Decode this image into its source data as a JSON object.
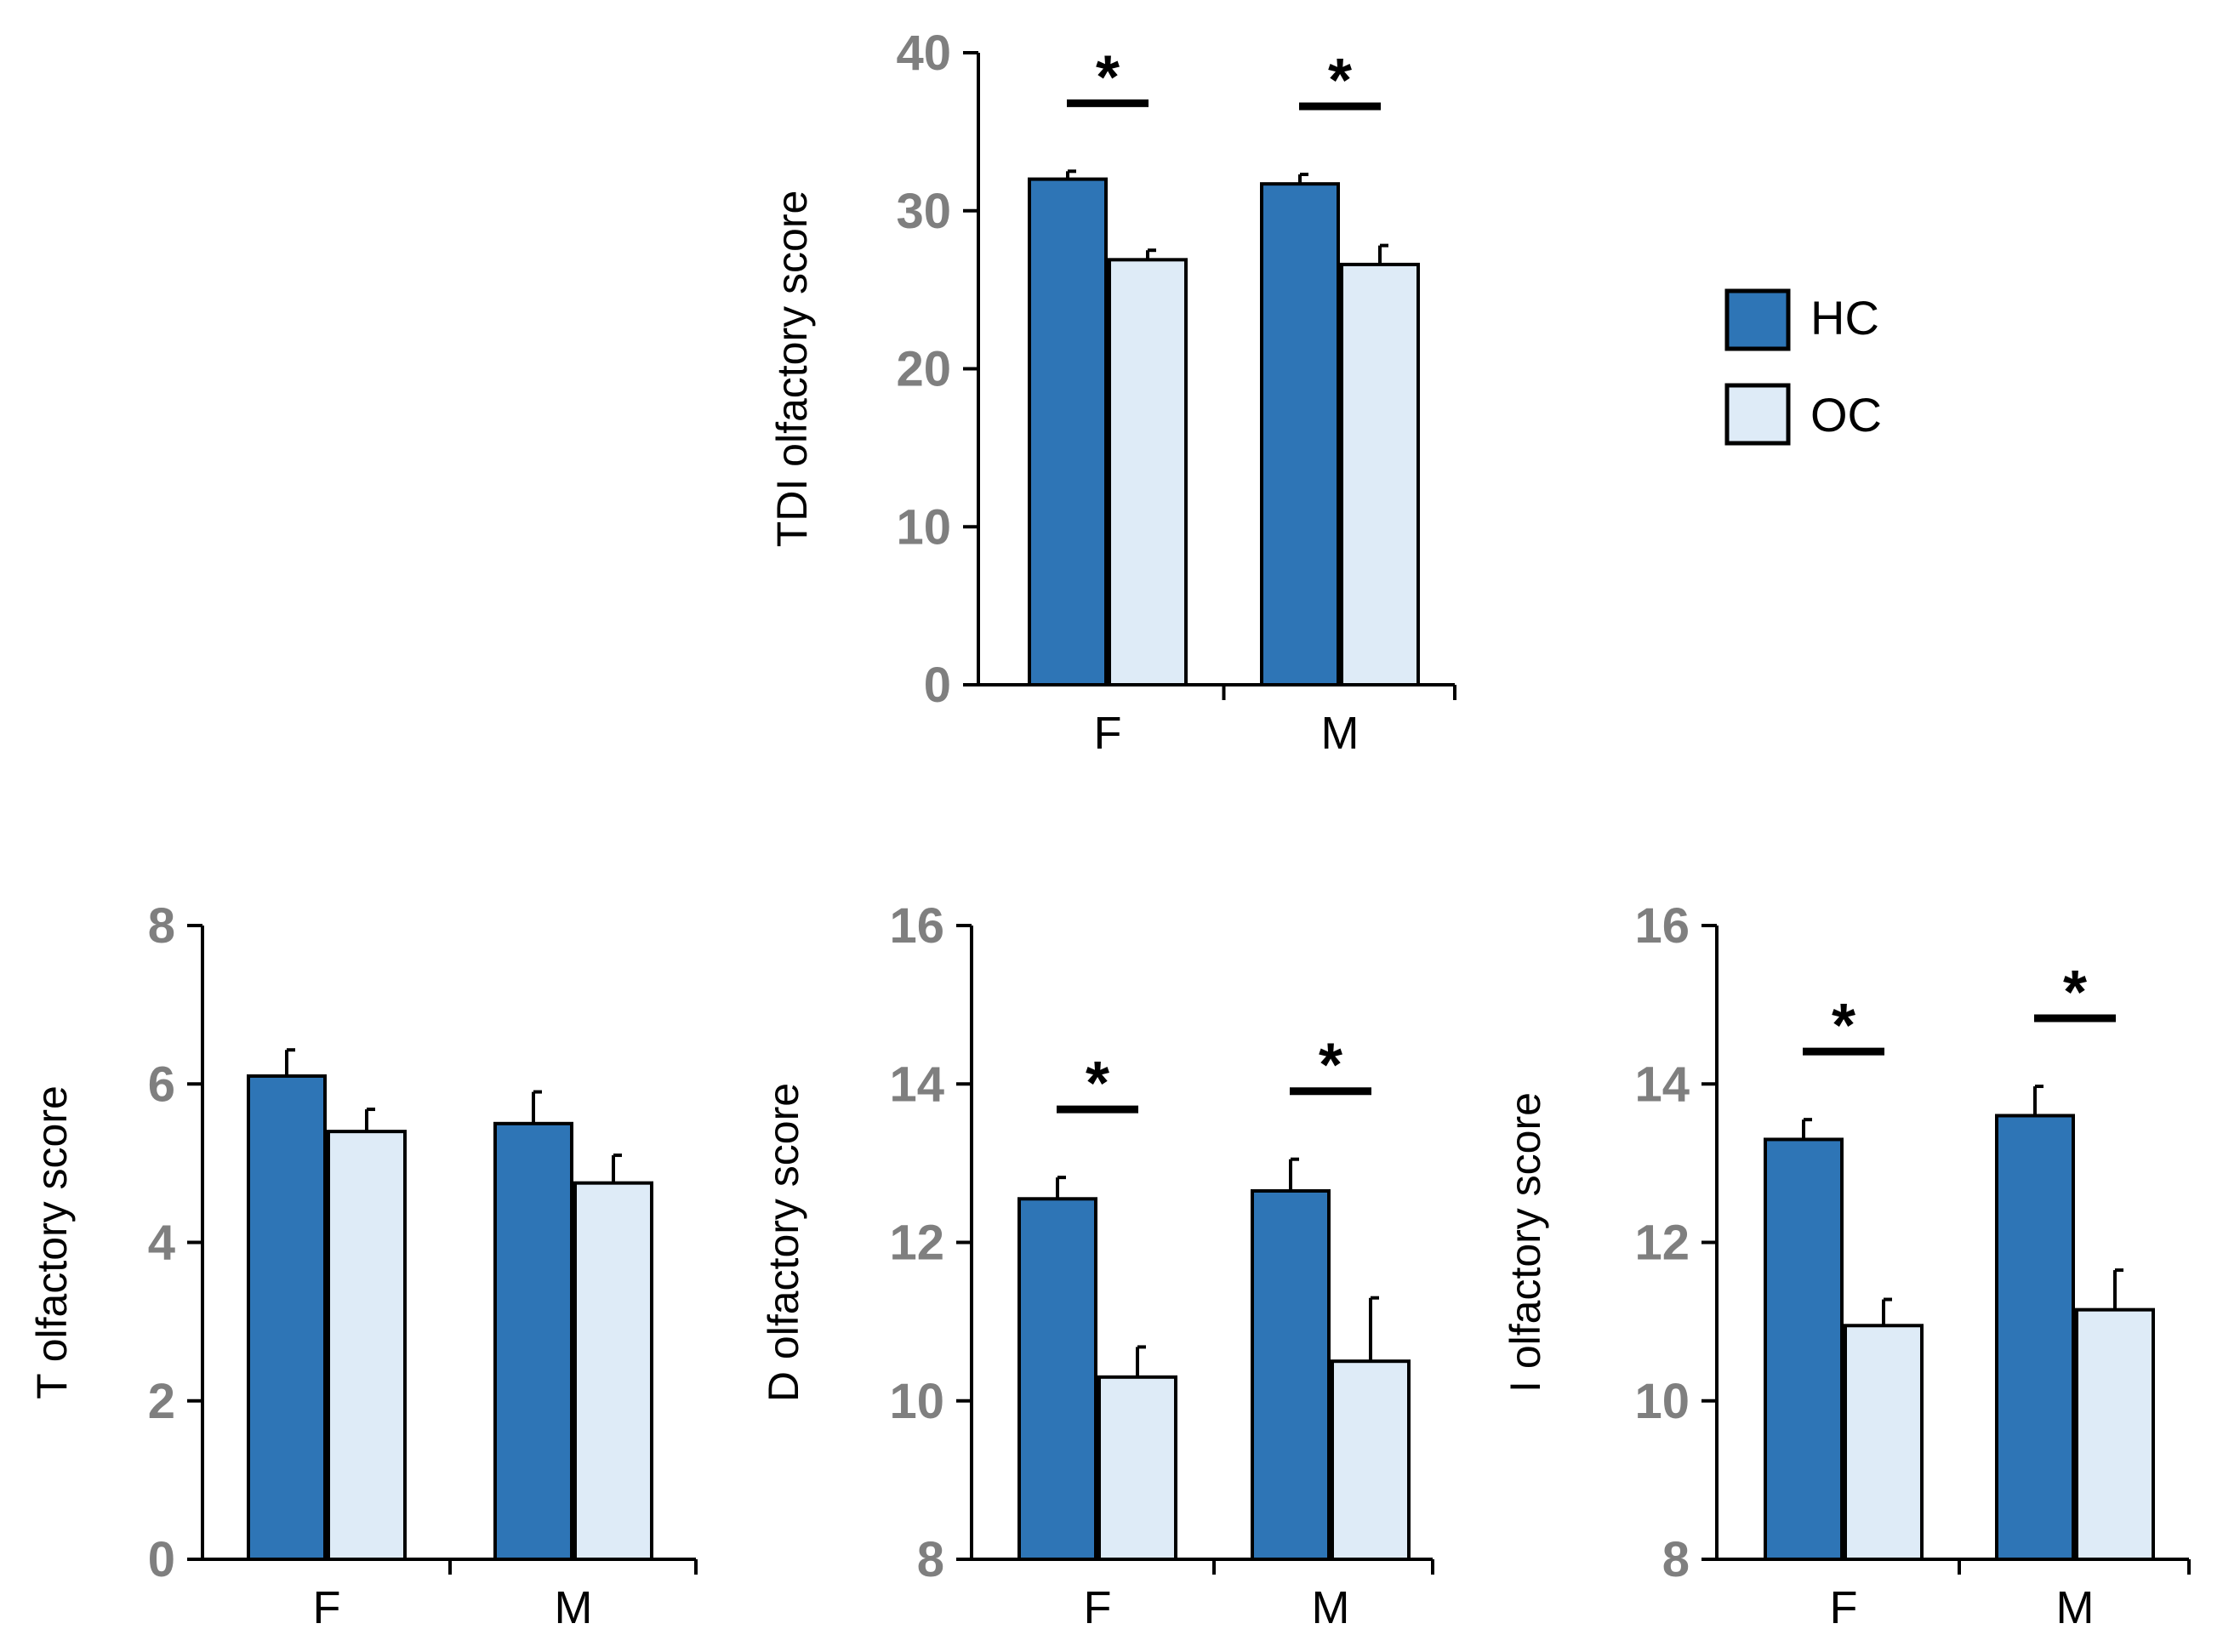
{
  "colors": {
    "HC": "#2e75b6",
    "OC": "#deebf7",
    "axis": "#000000",
    "tick_text": "#7f7f7f"
  },
  "legend": {
    "items": [
      {
        "key": "HC",
        "label": "HC"
      },
      {
        "key": "OC",
        "label": "OC"
      }
    ],
    "position": "right of top chart"
  },
  "chart_data": [
    {
      "id": "tdi",
      "type": "bar",
      "ylabel": "TDI olfactory score",
      "categories": [
        "F",
        "M"
      ],
      "ylim": [
        0,
        40
      ],
      "yticks": [
        "0",
        "10",
        "20",
        "30",
        "40"
      ],
      "series": [
        {
          "name": "HC",
          "values": [
            32.0,
            31.7
          ],
          "errors": [
            0.5,
            0.6
          ]
        },
        {
          "name": "OC",
          "values": [
            26.9,
            26.6
          ],
          "errors": [
            0.6,
            1.2
          ]
        }
      ],
      "significance": [
        "*",
        "*"
      ]
    },
    {
      "id": "t",
      "type": "bar",
      "ylabel": "T olfactory score",
      "categories": [
        "F",
        "M"
      ],
      "ylim": [
        0,
        8
      ],
      "yticks": [
        "0",
        "2",
        "4",
        "6",
        "8"
      ],
      "series": [
        {
          "name": "HC",
          "values": [
            6.1,
            5.5
          ],
          "errors": [
            0.33,
            0.4
          ]
        },
        {
          "name": "OC",
          "values": [
            5.4,
            4.75
          ],
          "errors": [
            0.28,
            0.35
          ]
        }
      ],
      "significance": [
        "",
        ""
      ]
    },
    {
      "id": "d",
      "type": "bar",
      "ylabel": "D olfactory score",
      "categories": [
        "F",
        "M"
      ],
      "ylim": [
        8,
        16
      ],
      "yticks": [
        "8",
        "10",
        "12",
        "14",
        "16"
      ],
      "series": [
        {
          "name": "HC",
          "values": [
            12.55,
            12.65
          ],
          "errors": [
            0.27,
            0.4
          ]
        },
        {
          "name": "OC",
          "values": [
            10.3,
            10.5
          ],
          "errors": [
            0.38,
            0.8
          ]
        }
      ],
      "significance": [
        "*",
        "*"
      ]
    },
    {
      "id": "i",
      "type": "bar",
      "ylabel": "I olfactory score",
      "categories": [
        "F",
        "M"
      ],
      "ylim": [
        8,
        16
      ],
      "yticks": [
        "8",
        "10",
        "12",
        "14",
        "16"
      ],
      "series": [
        {
          "name": "HC",
          "values": [
            13.3,
            13.6
          ],
          "errors": [
            0.25,
            0.37
          ]
        },
        {
          "name": "OC",
          "values": [
            10.95,
            11.15
          ],
          "errors": [
            0.33,
            0.5
          ]
        }
      ],
      "significance": [
        "*",
        "*"
      ]
    }
  ]
}
